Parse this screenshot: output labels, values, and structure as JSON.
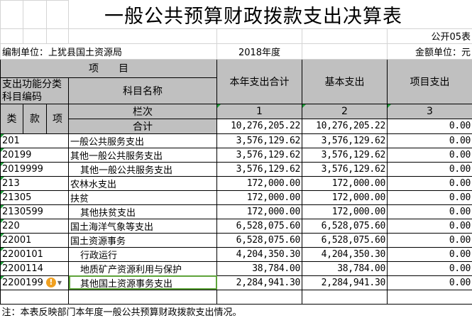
{
  "title": "一般公共预算财政拨款支出决算表",
  "form_no": "公开05表",
  "unit": "编制单位：上犹县国土资源局",
  "year": "2018年度",
  "currency": "金额单位：元",
  "headers": {
    "item": "项　　目",
    "code": "支出功能分类科目编码",
    "name": "科目名称",
    "total": "本年支出合计",
    "basic": "基本支出",
    "project": "项目支出",
    "lei": "类",
    "kuan": "款",
    "xiang": "项",
    "col_index": "栏次",
    "col1": "1",
    "col2": "2",
    "col3": "3"
  },
  "summary": {
    "label": "合计",
    "total": "10,276,205.22",
    "basic": "10,276,205.22",
    "project": "0.00"
  },
  "rows": [
    {
      "code": "201",
      "name": "一般公共服务支出",
      "total": "3,576,129.62",
      "basic": "3,576,129.62",
      "project": "0.00"
    },
    {
      "code": "20199",
      "name": "其他一般公共服务支出",
      "total": "3,576,129.62",
      "basic": "3,576,129.62",
      "project": "0.00"
    },
    {
      "code": "2019999",
      "name": "其他一般公共服务支出",
      "total": "3,576,129.62",
      "basic": "3,576,129.62",
      "project": "0.00",
      "indent": true
    },
    {
      "code": "213",
      "name": "农林水支出",
      "total": "172,000.00",
      "basic": "172,000.00",
      "project": "0.00"
    },
    {
      "code": "21305",
      "name": "扶贫",
      "total": "172,000.00",
      "basic": "172,000.00",
      "project": "0.00"
    },
    {
      "code": "2130599",
      "name": "其他扶贫支出",
      "total": "172,000.00",
      "basic": "172,000.00",
      "project": "0.00",
      "indent": true
    },
    {
      "code": "220",
      "name": "国土海洋气象等支出",
      "total": "6,528,075.60",
      "basic": "6,528,075.60",
      "project": "0.00"
    },
    {
      "code": "22001",
      "name": "国土资源事务",
      "total": "6,528,075.60",
      "basic": "6,528,075.60",
      "project": "0.00"
    },
    {
      "code": "2200101",
      "name": "行政运行",
      "total": "4,204,350.30",
      "basic": "4,204,350.30",
      "project": "0.00",
      "indent": true
    },
    {
      "code": "2200114",
      "name": "地质矿产资源利用与保护",
      "total": "38,784.00",
      "basic": "38,784.00",
      "project": "0.00",
      "indent": true
    },
    {
      "code": "2200199",
      "name": "其他国土资源事务支出",
      "total": "2,284,941.30",
      "basic": "2,284,941.30",
      "project": "0.00",
      "indent": true,
      "selected": true,
      "warning": true
    }
  ],
  "note": "注：本表反映部门本年度一般公共预算财政拨款支出情况。",
  "colors": {
    "header_bg": "#c0c0c0",
    "selection": "#5ea33a",
    "warning": "#f0a020"
  }
}
